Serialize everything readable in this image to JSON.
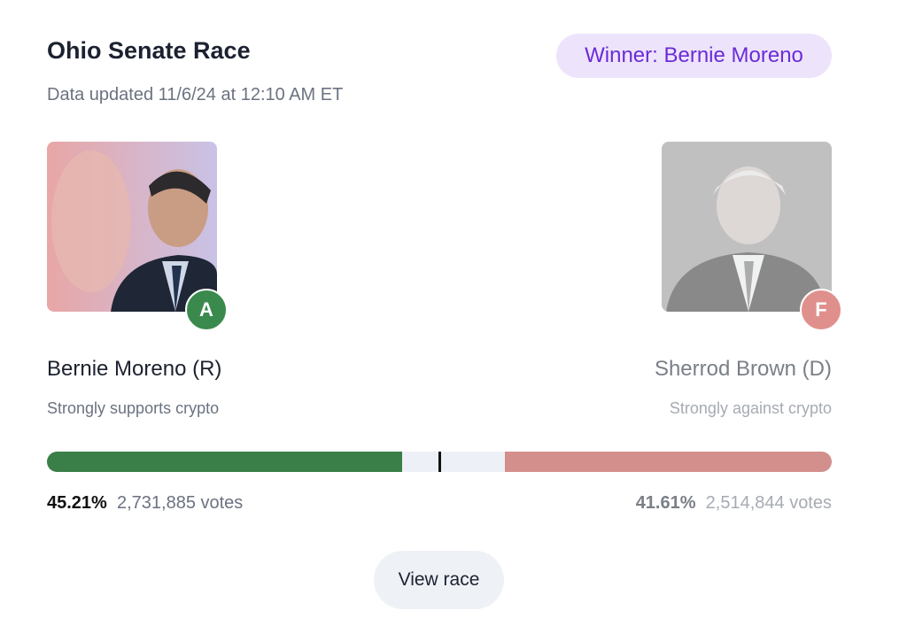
{
  "header": {
    "title": "Ohio Senate Race",
    "winner": "Winner: Bernie Moreno",
    "updated": "Data updated 11/6/24 at 12:10 AM ET"
  },
  "candidates": [
    {
      "name": "Bernie Moreno (R)",
      "grade": "A",
      "stance": "Strongly supports crypto",
      "share": 45.21,
      "share_label": "45.21%",
      "votes": "2,731,885 votes"
    },
    {
      "name": "Sherrod Brown (D)",
      "grade": "F",
      "stance": "Strongly against crypto",
      "share": 41.61,
      "share_label": "41.61%",
      "votes": "2,514,844 votes"
    }
  ],
  "button": "View race"
}
